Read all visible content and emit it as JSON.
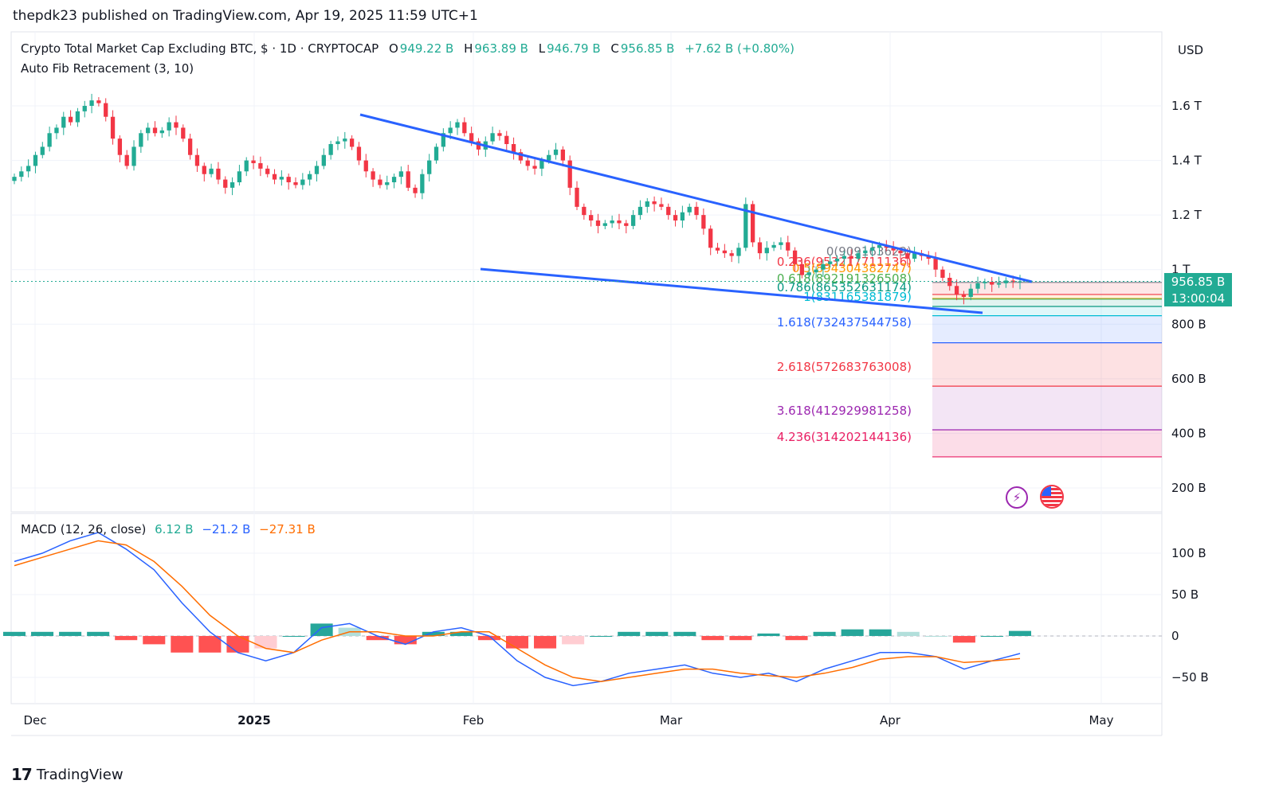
{
  "header": {
    "published": "thepdk23 published on TradingView.com, Apr 19, 2025 11:59 UTC+1"
  },
  "legend": {
    "symbol": "Crypto Total Market Cap Excluding BTC, $ · 1D · CRYPTOCAP",
    "o_key": "O",
    "o_val": "949.22 B",
    "h_key": "H",
    "h_val": "963.89 B",
    "l_key": "L",
    "l_val": "946.79 B",
    "c_key": "C",
    "c_val": "956.85 B",
    "change": "+7.62 B (+0.80%)",
    "indicator": "Auto Fib Retracement (3, 10)"
  },
  "macd_legend": {
    "label": "MACD (12, 26, close)",
    "hist": "6.12 B",
    "macd": "−21.2 B",
    "signal": "−27.31 B"
  },
  "price_tag": {
    "value": "956.85 B",
    "countdown": "13:00:04"
  },
  "currency": "USD",
  "footer": {
    "brand": "TradingView"
  },
  "colors": {
    "up": "#22ab94",
    "down": "#f23645",
    "trendline": "#2962ff",
    "macd_line": "#2962ff",
    "signal_line": "#ff6d00"
  },
  "chart_data": [
    {
      "type": "candlestick",
      "title": "Crypto Total Market Cap Excluding BTC, $ · 1D · CRYPTOCAP",
      "y_unit": "USD",
      "y_ticks": [
        "200 B",
        "400 B",
        "600 B",
        "800 B",
        "1 T",
        "1.2 T",
        "1.4 T",
        "1.6 T"
      ],
      "x_ticks": [
        "Dec",
        "2025",
        "Feb",
        "Mar",
        "Apr",
        "May"
      ],
      "ylim": [
        180,
        1700
      ],
      "closes_b": [
        1340,
        1360,
        1380,
        1420,
        1450,
        1500,
        1520,
        1560,
        1540,
        1580,
        1600,
        1620,
        1610,
        1560,
        1480,
        1420,
        1380,
        1450,
        1500,
        1520,
        1500,
        1510,
        1540,
        1520,
        1480,
        1420,
        1380,
        1350,
        1370,
        1330,
        1300,
        1320,
        1360,
        1400,
        1390,
        1370,
        1350,
        1330,
        1340,
        1320,
        1310,
        1330,
        1350,
        1380,
        1420,
        1460,
        1470,
        1480,
        1450,
        1400,
        1360,
        1330,
        1310,
        1320,
        1340,
        1360,
        1300,
        1280,
        1350,
        1400,
        1450,
        1500,
        1520,
        1540,
        1500,
        1470,
        1440,
        1470,
        1500,
        1490,
        1460,
        1430,
        1400,
        1380,
        1370,
        1400,
        1420,
        1440,
        1400,
        1300,
        1230,
        1200,
        1180,
        1160,
        1170,
        1180,
        1170,
        1160,
        1200,
        1230,
        1250,
        1240,
        1230,
        1200,
        1180,
        1210,
        1230,
        1200,
        1150,
        1080,
        1070,
        1060,
        1050,
        1080,
        1240,
        1100,
        1060,
        1080,
        1090,
        1100,
        1070,
        1020,
        980,
        990,
        1000,
        1020,
        1030,
        1040,
        1050,
        1040,
        1060,
        1070,
        1080,
        1090,
        1080,
        1070,
        1060,
        1040,
        1060,
        1050,
        1040,
        1000,
        970,
        940,
        910,
        900,
        930,
        950,
        955,
        945,
        950,
        960,
        955,
        957
      ],
      "fib_levels": [
        {
          "ratio": "0",
          "value": "909163629"
        },
        {
          "ratio": "0.236",
          "value": "953217711136"
        },
        {
          "ratio": "0.5",
          "value": "894304382747"
        },
        {
          "ratio": "0.618",
          "value": "892191326508"
        },
        {
          "ratio": "0.786",
          "value": "865352631174"
        },
        {
          "ratio": "1",
          "value": "831165381879"
        },
        {
          "ratio": "1.618",
          "value": "732437544758"
        },
        {
          "ratio": "2.618",
          "value": "572683763008"
        },
        {
          "ratio": "3.618",
          "value": "412929981258"
        },
        {
          "ratio": "4.236",
          "value": "314202144136"
        }
      ],
      "fib_labels_printed": [
        "0(909163629)",
        "0.236(953217711136)",
        "0.5(894304382747)",
        "0.618(892191326508)",
        "0.786(865352631174)",
        "1(831165381879)",
        "1.618(732437544758)",
        "2.618(572683763008)",
        "3.618(412929981258)",
        "4.236(314202144136)"
      ],
      "last_price": "956.85 B"
    },
    {
      "type": "line",
      "title": "MACD (12, 26, close)",
      "y_ticks": [
        "100 B",
        "50 B",
        "0",
        "−50 B"
      ],
      "ylim": [
        -80,
        130
      ],
      "series": [
        {
          "name": "MACD",
          "values": [
            90,
            100,
            115,
            125,
            105,
            80,
            40,
            5,
            -20,
            -30,
            -20,
            10,
            15,
            0,
            -10,
            5,
            10,
            0,
            -30,
            -50,
            -60,
            -55,
            -45,
            -40,
            -35,
            -45,
            -50,
            -45,
            -55,
            -40,
            -30,
            -20,
            -20,
            -25,
            -40,
            -30,
            -21.2
          ]
        },
        {
          "name": "Signal",
          "values": [
            85,
            95,
            105,
            115,
            110,
            90,
            60,
            25,
            0,
            -15,
            -20,
            -5,
            5,
            5,
            0,
            0,
            5,
            5,
            -15,
            -35,
            -50,
            -55,
            -50,
            -45,
            -40,
            -40,
            -45,
            -48,
            -50,
            -45,
            -38,
            -28,
            -25,
            -25,
            -32,
            -30,
            -27.31
          ]
        }
      ],
      "histogram": [
        5,
        5,
        5,
        5,
        -5,
        -10,
        -20,
        -20,
        -20,
        -15,
        0,
        15,
        10,
        -5,
        -10,
        5,
        5,
        -5,
        -15,
        -15,
        -10,
        0,
        5,
        5,
        5,
        -5,
        -5,
        3,
        -5,
        5,
        8,
        8,
        5,
        0,
        -8,
        0,
        6.12
      ]
    }
  ]
}
